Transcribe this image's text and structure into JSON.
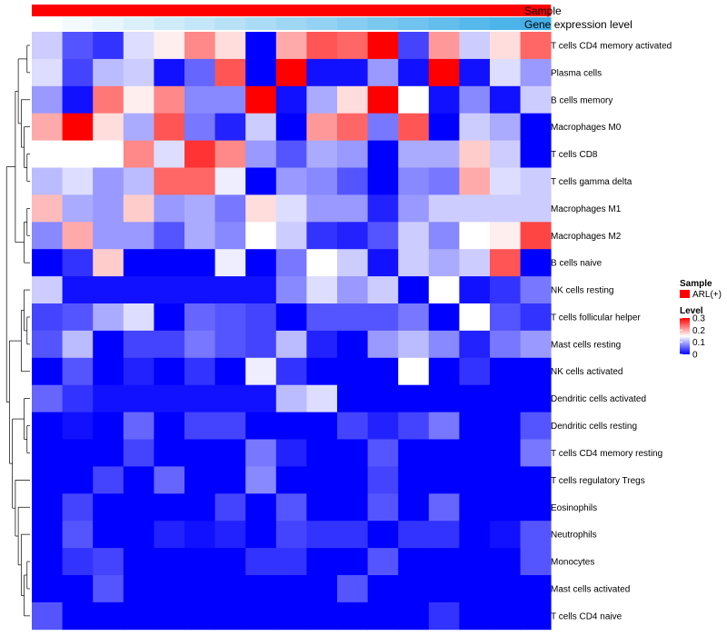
{
  "chart_data": {
    "type": "heatmap",
    "title": "",
    "rows": [
      "T cells CD4 memory activated",
      "Plasma cells",
      "B cells memory",
      "Macrophages M0",
      "T cells CD8",
      "T cells gamma delta",
      "Macrophages M1",
      "Macrophages M2",
      "B cells naive",
      "NK cells resting",
      "T cells follicular helper",
      "Mast cells resting",
      "NK cells activated",
      "Dendritic cells activated",
      "Dendritic cells resting",
      "T cells CD4 memory resting",
      "T cells regulatory  Tregs",
      "Eosinophils",
      "Neutrophils",
      "Monocytes",
      "Mast cells activated",
      "T cells CD4 naive"
    ],
    "values": [
      [
        0.12,
        0.05,
        0.03,
        0.13,
        0.16,
        0.22,
        0.17,
        0.0,
        0.2,
        0.25,
        0.24,
        0.3,
        0.04,
        0.21,
        0.12,
        0.17,
        0.24
      ],
      [
        0.13,
        0.04,
        0.11,
        0.12,
        0.01,
        0.06,
        0.25,
        0.0,
        0.3,
        0.01,
        0.01,
        0.09,
        0.01,
        0.3,
        0.01,
        0.13,
        0.09
      ],
      [
        0.09,
        0.01,
        0.23,
        0.16,
        0.22,
        0.08,
        0.08,
        0.3,
        0.01,
        0.1,
        0.17,
        0.3,
        0.15,
        0.01,
        0.08,
        0.01,
        0.12
      ],
      [
        0.2,
        0.3,
        0.17,
        0.1,
        0.25,
        0.07,
        0.02,
        0.12,
        0.0,
        0.21,
        0.24,
        0.07,
        0.25,
        0.0,
        0.12,
        0.1,
        0.0
      ],
      [
        0.15,
        0.15,
        0.15,
        0.22,
        0.13,
        0.27,
        0.22,
        0.09,
        0.05,
        0.1,
        0.09,
        0.0,
        0.1,
        0.1,
        0.18,
        0.12,
        0.0
      ],
      [
        0.11,
        0.13,
        0.09,
        0.11,
        0.24,
        0.24,
        0.14,
        0.0,
        0.09,
        0.08,
        0.05,
        0.0,
        0.08,
        0.07,
        0.2,
        0.13,
        0.12
      ],
      [
        0.19,
        0.1,
        0.09,
        0.18,
        0.09,
        0.1,
        0.07,
        0.17,
        0.13,
        0.09,
        0.09,
        0.02,
        0.09,
        0.12,
        0.12,
        0.12,
        0.12
      ],
      [
        0.08,
        0.2,
        0.09,
        0.09,
        0.05,
        0.1,
        0.08,
        0.15,
        0.12,
        0.03,
        0.02,
        0.05,
        0.12,
        0.08,
        0.15,
        0.16,
        0.26
      ],
      [
        0.0,
        0.03,
        0.18,
        0.0,
        0.0,
        0.0,
        0.14,
        0.0,
        0.07,
        0.15,
        0.12,
        0.01,
        0.12,
        0.1,
        0.12,
        0.25,
        0.0
      ],
      [
        0.12,
        0.01,
        0.01,
        0.01,
        0.01,
        0.01,
        0.01,
        0.01,
        0.08,
        0.13,
        0.09,
        0.12,
        0.0,
        0.15,
        0.01,
        0.03,
        0.07
      ],
      [
        0.04,
        0.05,
        0.1,
        0.13,
        0.0,
        0.06,
        0.05,
        0.04,
        0.0,
        0.05,
        0.05,
        0.05,
        0.07,
        0.0,
        0.15,
        0.05,
        0.03
      ],
      [
        0.05,
        0.11,
        0.0,
        0.04,
        0.04,
        0.07,
        0.05,
        0.04,
        0.11,
        0.02,
        0.0,
        0.09,
        0.11,
        0.08,
        0.02,
        0.07,
        0.09
      ],
      [
        0.0,
        0.05,
        0.0,
        0.02,
        0.0,
        0.03,
        0.0,
        0.14,
        0.03,
        0.0,
        0.0,
        0.0,
        0.15,
        0.0,
        0.03,
        0.0,
        0.0
      ],
      [
        0.06,
        0.03,
        0.01,
        0.01,
        0.01,
        0.01,
        0.01,
        0.01,
        0.11,
        0.13,
        0.0,
        0.0,
        0.0,
        0.0,
        0.0,
        0.0,
        0.0
      ],
      [
        0.0,
        0.01,
        0.0,
        0.06,
        0.0,
        0.04,
        0.04,
        0.0,
        0.0,
        0.0,
        0.04,
        0.02,
        0.04,
        0.07,
        0.0,
        0.0,
        0.05
      ],
      [
        0.0,
        0.0,
        0.0,
        0.04,
        0.0,
        0.0,
        0.0,
        0.07,
        0.02,
        0.0,
        0.0,
        0.05,
        0.0,
        0.0,
        0.0,
        0.0,
        0.07
      ],
      [
        0.0,
        0.0,
        0.04,
        0.0,
        0.06,
        0.0,
        0.0,
        0.08,
        0.0,
        0.0,
        0.0,
        0.04,
        0.0,
        0.0,
        0.0,
        0.0,
        0.0
      ],
      [
        0.0,
        0.04,
        0.0,
        0.0,
        0.0,
        0.0,
        0.04,
        0.0,
        0.05,
        0.0,
        0.0,
        0.05,
        0.0,
        0.06,
        0.0,
        0.0,
        0.0
      ],
      [
        0.0,
        0.05,
        0.0,
        0.0,
        0.02,
        0.01,
        0.02,
        0.0,
        0.04,
        0.03,
        0.03,
        0.0,
        0.03,
        0.03,
        0.0,
        0.01,
        0.05
      ],
      [
        0.0,
        0.03,
        0.04,
        0.0,
        0.0,
        0.0,
        0.0,
        0.03,
        0.03,
        0.0,
        0.0,
        0.05,
        0.0,
        0.0,
        0.0,
        0.0,
        0.05
      ],
      [
        0.0,
        0.0,
        0.05,
        0.0,
        0.0,
        0.0,
        0.0,
        0.0,
        0.0,
        0.0,
        0.05,
        0.0,
        0.0,
        0.0,
        0.0,
        0.0,
        0.0
      ],
      [
        0.05,
        0.0,
        0.0,
        0.0,
        0.0,
        0.0,
        0.0,
        0.0,
        0.0,
        0.0,
        0.0,
        0.0,
        0.0,
        0.03,
        0.0,
        0.0,
        0.0
      ]
    ],
    "column_annotations": [
      {
        "name": "Sample",
        "color": "#ff0000"
      },
      {
        "name": "Gene expression level",
        "colors": [
          "#ffffff",
          "#f3fafe",
          "#e7f5fc",
          "#dbf0fb",
          "#cfebf9",
          "#c3e6f8",
          "#b7e1f6",
          "#abdcf5",
          "#9fd7f3",
          "#93d2f2",
          "#87cdf1",
          "#7bc8ef",
          "#6fc3ee",
          "#63beec",
          "#57b9eb",
          "#4db4e9",
          "#45b0e8"
        ]
      }
    ],
    "legend": {
      "sample": {
        "title": "Sample",
        "item": "ARL(+)",
        "color": "#ff0000"
      },
      "level": {
        "title": "Level",
        "ticks": [
          "0.3",
          "0.2",
          "0.1",
          "0"
        ],
        "tick_values": [
          0.3,
          0.2,
          0.1,
          0
        ],
        "range": [
          0,
          0.3
        ],
        "colors": [
          "#0000ff",
          "#ffffff",
          "#ff0000"
        ]
      }
    },
    "dendrogram": "row clustering"
  }
}
